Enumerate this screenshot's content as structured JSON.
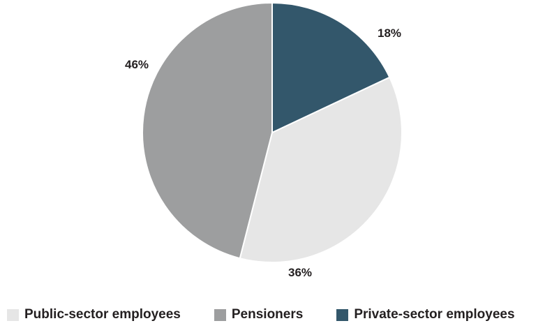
{
  "chart_data": {
    "type": "pie",
    "slices": [
      {
        "name": "Private-sector employees",
        "value": 18,
        "label": "18%",
        "color": "#33576b"
      },
      {
        "name": "Public-sector employees",
        "value": 36,
        "label": "36%",
        "color": "#e6e6e6"
      },
      {
        "name": "Pensioners",
        "value": 46,
        "label": "46%",
        "color": "#9d9e9f"
      }
    ],
    "legend": {
      "placement": "bottom",
      "items": [
        {
          "label": "Public-sector employees",
          "color": "#e6e6e6"
        },
        {
          "label": "Pensioners",
          "color": "#9d9e9f"
        },
        {
          "label": "Private-sector employees",
          "color": "#33576b"
        }
      ]
    }
  }
}
